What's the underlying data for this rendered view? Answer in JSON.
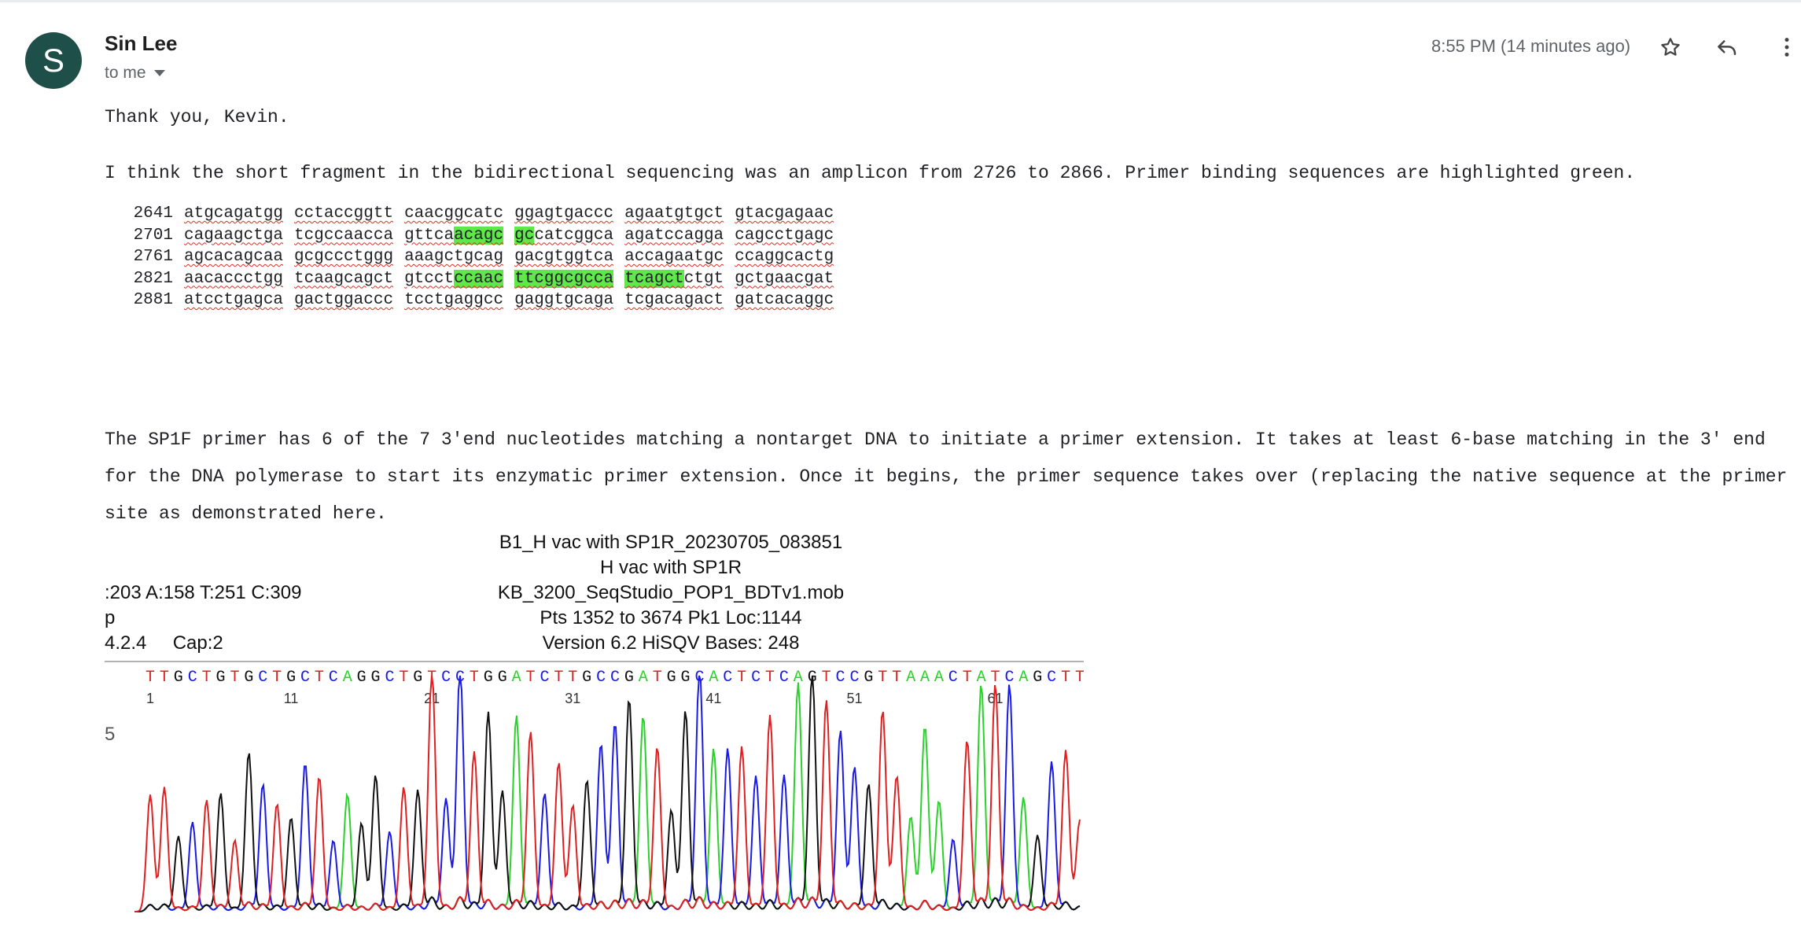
{
  "email": {
    "sender_initial": "S",
    "sender_name": "Sin Lee",
    "recipient_label": "to me",
    "time": "8:55 PM (14 minutes ago)",
    "icons": [
      "star-icon",
      "reply-icon",
      "more-vert-icon"
    ],
    "greeting": "Thank you, Kevin.",
    "paragraph1": "I think the short fragment in the bidirectional sequencing was an amplicon from 2726 to 2866. Primer binding sequences are highlighted green.",
    "paragraph2": "The SP1F primer has 6 of the 7 3'end nucleotides matching a nontarget DNA to initiate a primer extension. It takes at least 6-base matching in the 3' end for the DNA polymerase to start its enzymatic primer extension. Once it begins, the primer sequence takes over (replacing the native sequence at the primer site as demonstrated here."
  },
  "sequence": {
    "rows": [
      {
        "num": "2641",
        "chunks": [
          [
            "atgcagatgg"
          ],
          [
            "cctaccggtt"
          ],
          [
            "caacggcatc"
          ],
          [
            "ggagtgaccc"
          ],
          [
            "agaatgtgct"
          ],
          [
            "gtacgagaac"
          ]
        ]
      },
      {
        "num": "2701",
        "chunks": [
          [
            "cagaagctga"
          ],
          [
            "tcgccaacca"
          ],
          [
            "gttca",
            "acagc"
          ],
          [
            "",
            "gc",
            "catcggca"
          ],
          [
            "agatccagga"
          ],
          [
            "cagcctgagc"
          ]
        ]
      },
      {
        "num": "2761",
        "chunks": [
          [
            "agcacagcaa"
          ],
          [
            "gcgccctggg"
          ],
          [
            "aaagctgcag"
          ],
          [
            "gacgtggtca"
          ],
          [
            "accagaatgc"
          ],
          [
            "ccaggcactg"
          ]
        ]
      },
      {
        "num": "2821",
        "chunks": [
          [
            "aacaccctgg"
          ],
          [
            "tcaagcagct"
          ],
          [
            "gtcct",
            "ccaac"
          ],
          [
            "",
            "ttcggcgcca"
          ],
          [
            "",
            "tcagct",
            "ctgt"
          ],
          [
            "gctgaacgat"
          ]
        ]
      },
      {
        "num": "2881",
        "chunks": [
          [
            "atcctgagca"
          ],
          [
            "gactggaccc"
          ],
          [
            "tcctgaggcc"
          ],
          [
            "gaggtgcaga"
          ],
          [
            "tcgacagact"
          ],
          [
            "gatcacaggc"
          ]
        ]
      }
    ]
  },
  "chromatogram": {
    "header_line1": "B1_H vac with SP1R_20230705_083851",
    "header_line2": "H vac with SP1R",
    "header_line3": "KB_3200_SeqStudio_POP1_BDTv1.mob",
    "header_line4": "Pts 1352 to 3674 Pk1 Loc:1144",
    "header_line5": "Version 6.2    HiSQV Bases: 248",
    "left_line1": ":203 A:158 T:251 C:309",
    "left_line2": "p",
    "left_line3": "4.2.4     Cap:2",
    "bases": "TTGCTGTGCTGCTCAGGCTGTCCTGGATCTTGCCGATGGCACTCTCAGTCCGTTAAACTATCAGCTT",
    "ticks": [
      "1",
      "11",
      "21",
      "31",
      "41",
      "51",
      "61"
    ],
    "y_label": "5",
    "colors": {
      "A": "#2bd12b",
      "C": "#1a1ae6",
      "G": "#111111",
      "T": "#e02020"
    }
  }
}
